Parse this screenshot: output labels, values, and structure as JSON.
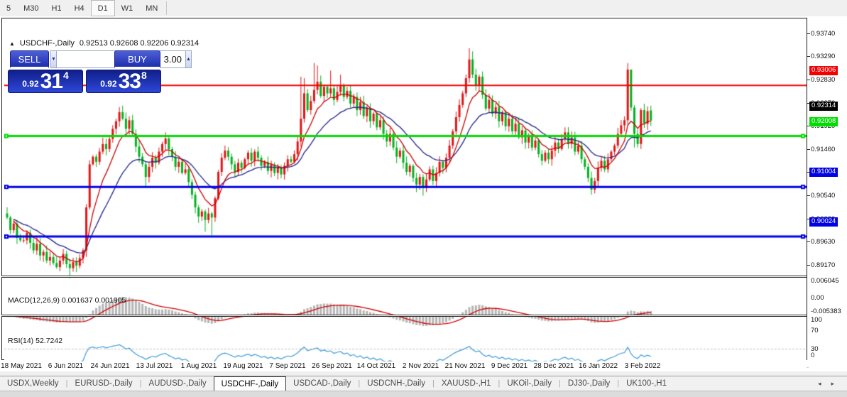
{
  "toolbar": {
    "timeframes": [
      "5",
      "M30",
      "H1",
      "H4",
      "D1",
      "W1",
      "MN"
    ],
    "active_timeframe": "D1"
  },
  "header": {
    "marker": "▲",
    "symbol": "USDCHF-,Daily",
    "ohlc_text": "0.92513 0.92608 0.92206 0.92314"
  },
  "trade_panel": {
    "sell_label": "SELL",
    "buy_label": "BUY",
    "volume": "3.00",
    "volume_down_icon": "▼",
    "volume_up_icon": "▲",
    "sell_price_prefix": "0.92",
    "sell_price_big": "31",
    "sell_price_sup": "4",
    "buy_price_prefix": "0.92",
    "buy_price_big": "33",
    "buy_price_sup": "8"
  },
  "price_axis": {
    "ticks": [
      "0.93740",
      "0.93290",
      "0.92830",
      "0.92370",
      "0.91920",
      "0.91460",
      "0.91000",
      "0.90540",
      "0.90080",
      "0.89630",
      "0.89170"
    ],
    "current_price": {
      "text": "0.92314",
      "bg": "#000000",
      "fg": "#ffffff"
    }
  },
  "levels": [
    {
      "text": "0.93006",
      "price": 0.93006,
      "color": "#f40000",
      "width": 2,
      "handles": false
    },
    {
      "text": "0.92008",
      "price": 0.92008,
      "color": "#00dd00",
      "width": 3,
      "handles": true
    },
    {
      "text": "0.91004",
      "price": 0.91004,
      "color": "#0000e4",
      "width": 3,
      "handles": true
    },
    {
      "text": "0.90024",
      "price": 0.90024,
      "color": "#0000e4",
      "width": 3,
      "handles": true
    }
  ],
  "macd_panel": {
    "label": "MACD(12,26,9)",
    "values": "0.001637 0.001905",
    "axis": [
      "0.006045",
      "0.00",
      "-0.005383"
    ],
    "axis_range": {
      "max": 0.006045,
      "min": -0.005383
    }
  },
  "rsi_panel": {
    "label": "RSI(14)",
    "value": "52.7242",
    "axis": [
      "100",
      "70",
      "30",
      "0"
    ],
    "levels": [
      70,
      30
    ]
  },
  "date_axis": [
    "18 May 2021",
    "6 Jun 2021",
    "24 Jun 2021",
    "13 Jul 2021",
    "1 Aug 2021",
    "19 Aug 2021",
    "7 Sep 2021",
    "26 Sep 2021",
    "14 Oct 2021",
    "2 Nov 2021",
    "21 Nov 2021",
    "9 Dec 2021",
    "28 Dec 2021",
    "16 Jan 2022",
    "3 Feb 2022"
  ],
  "tab_bar": {
    "tabs": [
      "USDX,Weekly",
      "EURUSD-,Daily",
      "AUDUSD-,Daily",
      "USDCHF-,Daily",
      "USDCAD-,Daily",
      "USDCNH-,Daily",
      "XAUUSD-,H1",
      "UKOil-,Daily",
      "DJ30-,Daily",
      "UK100-,H1"
    ],
    "active_tab": "USDCHF-,Daily",
    "scroll_left_icon": "◂",
    "scroll_right_icon": "▸"
  },
  "chart_data": {
    "type": "candlestick",
    "symbol": "USDCHF-",
    "timeframe": "Daily",
    "current_bar": {
      "open": 0.92513,
      "high": 0.92608,
      "low": 0.92206,
      "close": 0.92314
    },
    "colors": {
      "bull": "#e41414",
      "bear": "#00b41e",
      "ma_fast": "#cc0000",
      "ma_slow": "#23238c",
      "macd_hist": "#b5b5b5",
      "macd_signal": "#d40000",
      "rsi_line": "#3d9bd5",
      "dashed_level": "#c0c0c0"
    },
    "indicators": {
      "ma_fast_period": 8,
      "ma_slow_period": 20,
      "macd": [
        12,
        26,
        9
      ],
      "rsi_period": 14
    },
    "closes": [
      0.904,
      0.9015,
      0.9028,
      0.9,
      0.8995,
      0.8995,
      0.901,
      0.899,
      0.8975,
      0.8988,
      0.8965,
      0.8972,
      0.8955,
      0.8962,
      0.895,
      0.8942,
      0.8955,
      0.8968,
      0.8948,
      0.894,
      0.8952,
      0.8945,
      0.896,
      0.8975,
      0.906,
      0.9145,
      0.916,
      0.915,
      0.917,
      0.9185,
      0.9175,
      0.9195,
      0.9215,
      0.923,
      0.9248,
      0.9235,
      0.9215,
      0.9232,
      0.9205,
      0.918,
      0.916,
      0.9145,
      0.912,
      0.914,
      0.9158,
      0.9148,
      0.917,
      0.9185,
      0.9196,
      0.9175,
      0.916,
      0.914,
      0.915,
      0.9128,
      0.9135,
      0.911,
      0.9085,
      0.906,
      0.9042,
      0.9052,
      0.9035,
      0.9048,
      0.904,
      0.9078,
      0.913,
      0.9158,
      0.9172,
      0.916,
      0.9145,
      0.913,
      0.9148,
      0.9138,
      0.9155,
      0.9168,
      0.9152,
      0.917,
      0.9158,
      0.9142,
      0.915,
      0.9132,
      0.9145,
      0.9128,
      0.914,
      0.9125,
      0.9142,
      0.9155,
      0.915,
      0.9165,
      0.919,
      0.9235,
      0.9285,
      0.9252,
      0.927,
      0.9292,
      0.9308,
      0.928,
      0.9298,
      0.9285,
      0.9295,
      0.9272,
      0.9288,
      0.93,
      0.9278,
      0.929,
      0.9265,
      0.9278,
      0.9252,
      0.9268,
      0.924,
      0.9256,
      0.923,
      0.9245,
      0.9218,
      0.9232,
      0.9205,
      0.919,
      0.9205,
      0.9178,
      0.916,
      0.9172,
      0.9148,
      0.913,
      0.9142,
      0.9118,
      0.9105,
      0.912,
      0.9098,
      0.9115,
      0.9135,
      0.9112,
      0.9128,
      0.915,
      0.9138,
      0.9158,
      0.9182,
      0.921,
      0.9238,
      0.9262,
      0.9285,
      0.9315,
      0.9352,
      0.9322,
      0.93,
      0.9318,
      0.9282,
      0.9255,
      0.9272,
      0.9245,
      0.9258,
      0.923,
      0.9248,
      0.922,
      0.9235,
      0.921,
      0.9225,
      0.9198,
      0.9212,
      0.9188,
      0.92,
      0.9178,
      0.9192,
      0.9165,
      0.9152,
      0.9168,
      0.9155,
      0.9172,
      0.9188,
      0.9175,
      0.9195,
      0.9208,
      0.9185,
      0.9198,
      0.917,
      0.9182,
      0.9155,
      0.914,
      0.9118,
      0.9095,
      0.9112,
      0.9138,
      0.9152,
      0.9135,
      0.9155,
      0.917,
      0.9182,
      0.9205,
      0.9222,
      0.9232,
      0.9332,
      0.9257,
      0.9205,
      0.9185,
      0.9252,
      0.9225,
      0.925,
      0.92314
    ],
    "spike_highs": {
      "34": 0.9258,
      "48": 0.9208,
      "66": 0.9182,
      "89": 0.9318,
      "90": 0.9315,
      "93": 0.9345,
      "94": 0.934,
      "98": 0.933,
      "101": 0.9322,
      "140": 0.9374,
      "141": 0.9368,
      "169": 0.9218,
      "188": 0.9345,
      "189": 0.933,
      "195": 0.92608
    },
    "spike_lows": {
      "19": 0.892,
      "42": 0.9102,
      "60": 0.9012,
      "62": 0.9005,
      "124": 0.909,
      "126": 0.9083,
      "177": 0.9085,
      "190": 0.9178,
      "195": 0.92206
    },
    "price_at_top_tick": 0.9374,
    "price_at_bottom_tick": 0.8917
  }
}
